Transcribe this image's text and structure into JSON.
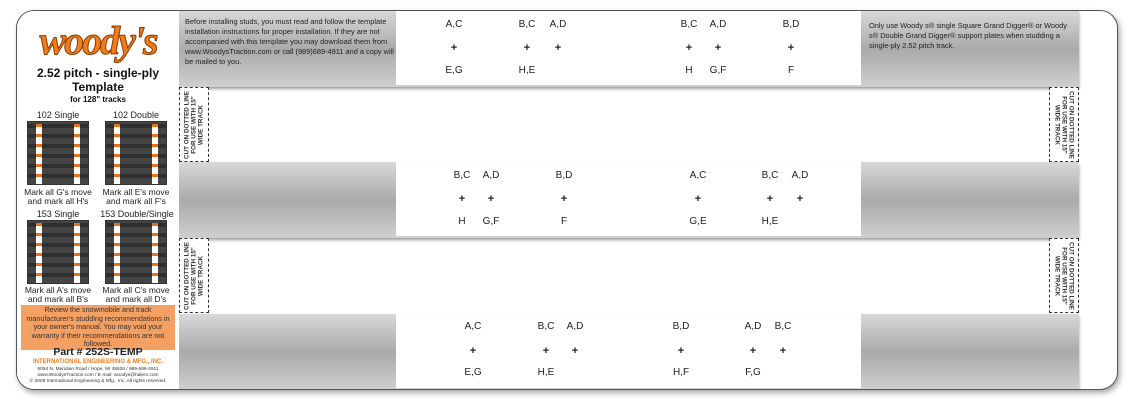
{
  "brand": {
    "logo_text": "woody's",
    "accent": "#f07d1a"
  },
  "left": {
    "title1": "2.52 pitch - single-ply",
    "title2": "Template",
    "title3": "for 128\" tracks",
    "tracks": [
      {
        "name": "102 Single",
        "mark1": "Mark all G's move",
        "mark2": "and mark all H's"
      },
      {
        "name": "102 Double",
        "mark1": "Mark all E's move",
        "mark2": "and mark all F's"
      },
      {
        "name": "153 Single",
        "mark1": "Mark all A's move",
        "mark2": "and mark all B's"
      },
      {
        "name": "153 Double/Single",
        "mark1": "Mark all C's move",
        "mark2": "and mark all D's"
      }
    ],
    "warning": "Review the snowmobile and track manufacturer's studding recommendations in your owner's manual. You may void your warranty if their recommendations are not followed.",
    "part": "Part # 252S-TEMP",
    "company": "INTERNATIONAL ENGINEERING & MFG., INC.",
    "address": "6054 N. Meridian Road / Hope, MI 48628 / 989-689-4911",
    "web": "www.WoodysTraction.com / E-mail: woodys@halem.com",
    "copyright": "© 2008 International Engineering & Mfg., Inc. All rights reserved."
  },
  "info_left": "Before installing studs, you must read and follow the template installation instructions for proper installation. If they are not accompanied with this template you may download them from www.WoodysTraction.com or call (989)689-4911 and a copy will be mailed to you.",
  "info_right": "Only use Woody s® single Square Grand Digger® or Woody s® Double Grand Digger® support plates when studding a single-ply 2.52 pitch track.",
  "cut_text": "CUT ON DOTTED LINE FOR USE WITH 15\" WIDE TRACK",
  "plus": "+",
  "rows": [
    [
      {
        "top": "A,C",
        "bottom": "E,G"
      },
      {
        "top": "B,C",
        "bottom": "H,E"
      },
      {
        "top": "A,D",
        "bottom": ""
      },
      {
        "top": "B,C",
        "bottom": "H"
      },
      {
        "top": "A,D",
        "bottom": "G,F"
      },
      {
        "top": "B,D",
        "bottom": "F"
      }
    ],
    [
      {
        "top": "B,C",
        "bottom": "H"
      },
      {
        "top": "A,D",
        "bottom": "G,F"
      },
      {
        "top": "B,D",
        "bottom": "F"
      },
      {
        "top": "A,C",
        "bottom": "G,E"
      },
      {
        "top": "B,C",
        "bottom": "H,E"
      },
      {
        "top": "A,D",
        "bottom": ""
      }
    ],
    [
      {
        "top": "A,C",
        "bottom": "E,G"
      },
      {
        "top": "B,C",
        "bottom": "H,E"
      },
      {
        "top": "A,D",
        "bottom": ""
      },
      {
        "top": "B,D",
        "bottom": "H,F"
      },
      {
        "top": "A,D",
        "bottom": "F,G"
      },
      {
        "top": "B,C",
        "bottom": ""
      }
    ]
  ]
}
